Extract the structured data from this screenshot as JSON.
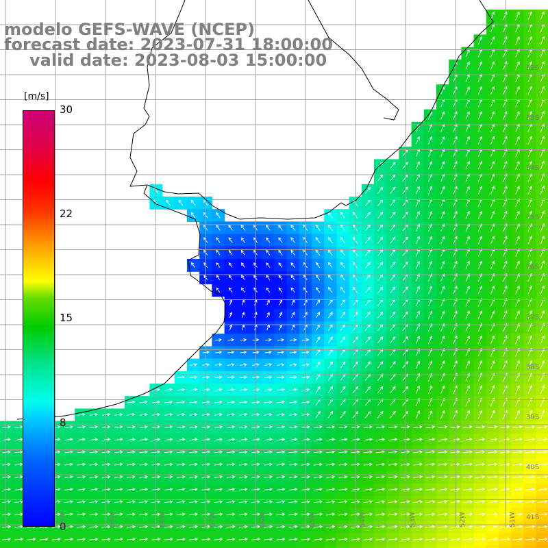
{
  "title": {
    "line1": "modelo GEFS-WAVE (NCEP)",
    "line2": "forecast date: 2023-07-31 18:00:00",
    "line3": "valid date: 2023-08-03 15:00:00"
  },
  "colorbar": {
    "unit": "[m/s]",
    "min": 0,
    "max": 30,
    "ticks": [
      "30",
      "22",
      "15",
      "8",
      "0"
    ]
  },
  "lat_labels": [
    "32S",
    "33S",
    "34S",
    "35S",
    "36S",
    "37S",
    "38S",
    "39S",
    "40S",
    "41S"
  ],
  "lon_labels": [
    "60W",
    "59W",
    "58W",
    "57W",
    "56W",
    "55W",
    "54W",
    "53W",
    "52W",
    "51W"
  ],
  "colors": {
    "land": "#ffffff",
    "grid": "#a0a0a0",
    "coast": "#000000",
    "arrow": "#ffffff",
    "title_text": "#808080"
  }
}
